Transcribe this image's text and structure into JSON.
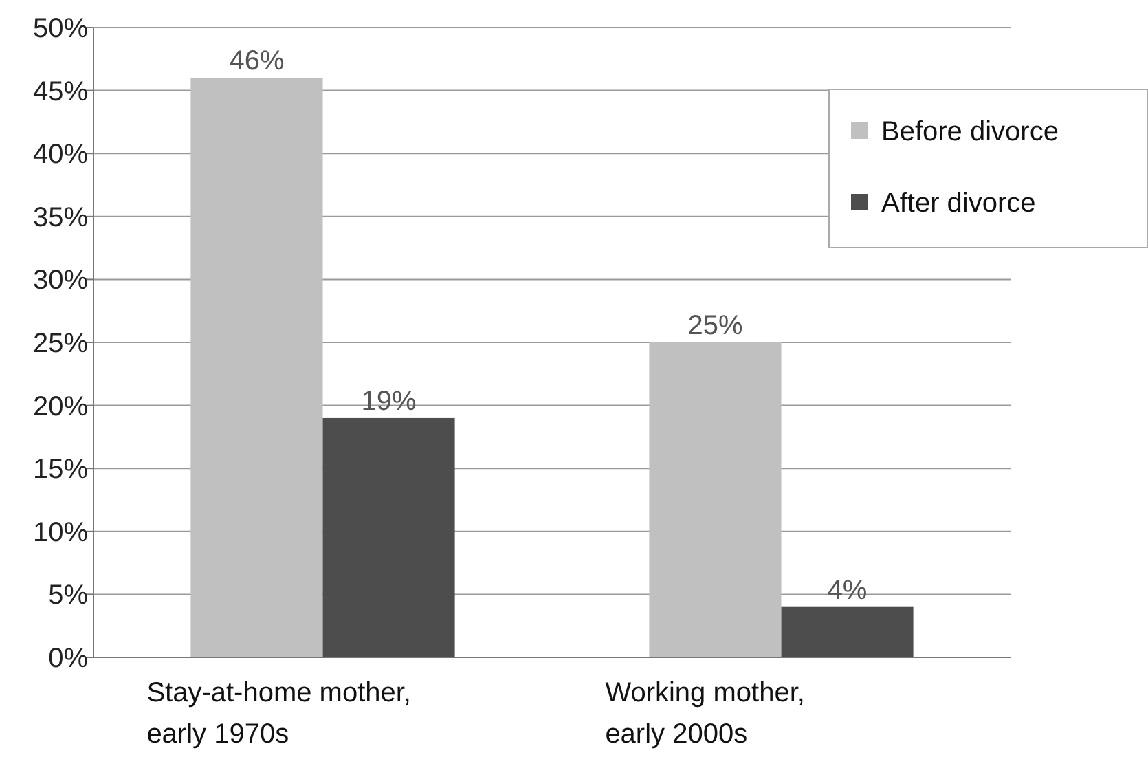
{
  "chart_data": {
    "type": "bar",
    "categories": [
      "Stay-at-home mother, early 1970s",
      "Working mother, early 2000s"
    ],
    "series": [
      {
        "name": "Before divorce",
        "color": "#c0c0c0",
        "values": [
          46,
          25
        ],
        "value_labels": [
          "46%",
          "25%"
        ]
      },
      {
        "name": "After divorce",
        "color": "#4d4d4d",
        "values": [
          19,
          4
        ],
        "value_labels": [
          "19%",
          "4%"
        ]
      }
    ],
    "ylim": [
      0,
      50
    ],
    "yticks": [
      {
        "value": 0,
        "label": "0%"
      },
      {
        "value": 5,
        "label": "5%"
      },
      {
        "value": 10,
        "label": "10%"
      },
      {
        "value": 15,
        "label": "15%"
      },
      {
        "value": 20,
        "label": "20%"
      },
      {
        "value": 25,
        "label": "25%"
      },
      {
        "value": 30,
        "label": "30%"
      },
      {
        "value": 35,
        "label": "35%"
      },
      {
        "value": 40,
        "label": "40%"
      },
      {
        "value": 45,
        "label": "45%"
      },
      {
        "value": 50,
        "label": "50%"
      }
    ],
    "grid": "y",
    "legend": "top right"
  }
}
